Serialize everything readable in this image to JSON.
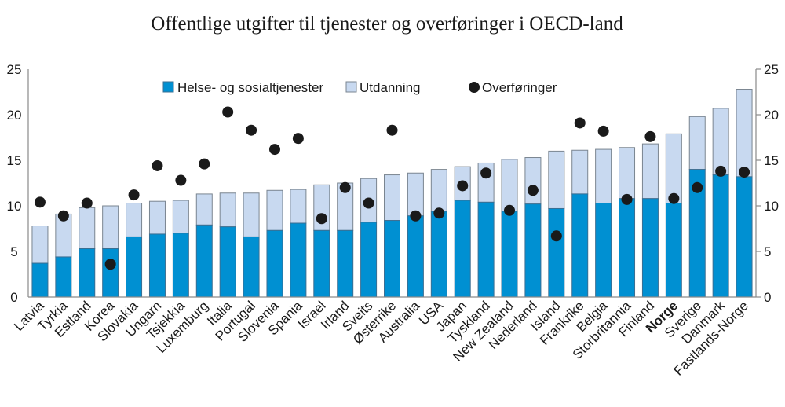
{
  "chart_data": {
    "type": "bar",
    "stacked": true,
    "title": "Offentlige utgifter til tjenester og overføringer i OECD-land",
    "xlabel": "",
    "ylabel": "",
    "ylim": [
      0,
      25
    ],
    "yticks": [
      0,
      5,
      10,
      15,
      20,
      25
    ],
    "ytick_labels": [
      "0",
      "5",
      "10",
      "15",
      "20",
      "25"
    ],
    "secondary_axis": "right, same scale",
    "grid": false,
    "legend_position": "top-inside",
    "categories": [
      "Latvia",
      "Tyrkia",
      "Estland",
      "Korea",
      "Slovakia",
      "Ungarn",
      "Tsjekkia",
      "Luxemburg",
      "Italia",
      "Portugal",
      "Slovenia",
      "Spania",
      "Israel",
      "Irland",
      "Sveits",
      "Østerrike",
      "Australia",
      "USA",
      "Japan",
      "Tyskland",
      "New Zealand",
      "Nederland",
      "Island",
      "Frankrike",
      "Belgia",
      "Storbritannia",
      "Finland",
      "Norge",
      "Sverige",
      "Danmark",
      "Fastlands-Norge"
    ],
    "highlight_category": "Norge",
    "series": [
      {
        "name": "Helse- og sosialtjenester",
        "kind": "bar",
        "color": "#0090d2",
        "values": [
          3.7,
          4.4,
          5.3,
          5.3,
          6.6,
          6.9,
          7.0,
          7.9,
          7.7,
          6.6,
          7.3,
          8.1,
          7.3,
          7.3,
          8.2,
          8.4,
          8.9,
          9.4,
          10.6,
          10.4,
          9.4,
          10.2,
          9.7,
          11.3,
          10.3,
          10.8,
          10.8,
          10.3,
          14.0,
          13.4,
          13.2
        ]
      },
      {
        "name": "Utdanning",
        "kind": "bar",
        "color": "#c8d9f0",
        "values": [
          4.1,
          4.7,
          4.5,
          4.7,
          3.7,
          3.6,
          3.6,
          3.4,
          3.7,
          4.8,
          4.4,
          3.7,
          5.0,
          5.2,
          4.8,
          5.0,
          4.7,
          4.6,
          3.7,
          4.3,
          5.7,
          5.1,
          6.3,
          4.8,
          5.9,
          5.6,
          6.0,
          7.6,
          5.8,
          7.3,
          9.6
        ]
      },
      {
        "name": "Overføringer",
        "kind": "scatter",
        "color": "#1a1a1a",
        "values": [
          10.4,
          8.9,
          10.3,
          3.6,
          11.2,
          14.4,
          12.8,
          14.6,
          20.3,
          18.3,
          16.2,
          17.4,
          8.6,
          12.0,
          10.3,
          18.3,
          8.9,
          9.2,
          12.2,
          13.6,
          9.5,
          11.7,
          6.7,
          19.1,
          18.2,
          10.7,
          17.6,
          10.8,
          12.0,
          13.8,
          13.7
        ]
      }
    ]
  },
  "colors": {
    "highlight_label": "#1a96d4",
    "axis": "#8a8a8a",
    "bar_border": "#7a8590"
  }
}
